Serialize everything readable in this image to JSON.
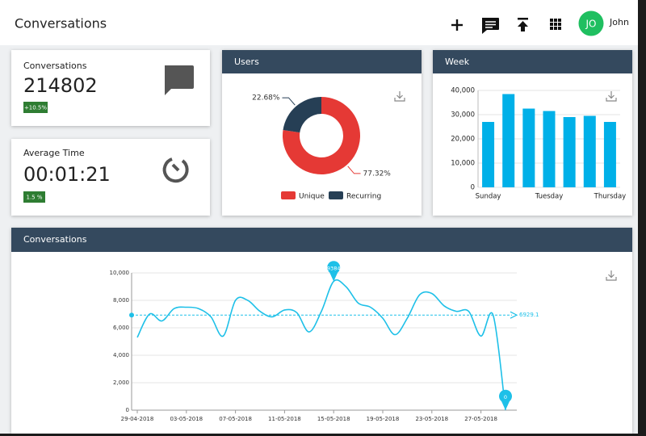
{
  "header": {
    "title": "Conversations",
    "avatar": "JO",
    "user": "John"
  },
  "cards": [
    {
      "label": "Conversations",
      "value": "214802",
      "badge": "+10.5%"
    },
    {
      "label": "Average Time",
      "value": "00:01:21",
      "badge": "1.5 %"
    }
  ],
  "chart_data": [
    {
      "type": "donut",
      "title": "Users",
      "categories": [
        "Unique",
        "Recurring"
      ],
      "values": [
        77.32,
        22.68
      ],
      "value_labels": [
        "77.32%",
        "22.68%"
      ],
      "colors": [
        "#e53935",
        "#263f55"
      ],
      "legend": "bottom"
    },
    {
      "type": "bar",
      "title": "Week",
      "categories": [
        "Sunday",
        null,
        null,
        "Tuesday",
        null,
        null,
        "Thursday"
      ],
      "values": [
        27000,
        38500,
        32500,
        31500,
        29000,
        29500,
        27000
      ],
      "color": "#00b0e8",
      "ylim": [
        0,
        40000
      ],
      "yticks": [
        0,
        {
          "value": 10000,
          "label": "10,000"
        },
        {
          "value": 20000,
          "label": "20,000"
        },
        {
          "value": 30000,
          "label": "30,000"
        },
        {
          "value": 40000,
          "label": "40,000"
        }
      ],
      "grid": true
    },
    {
      "type": "line",
      "title": "Conversations",
      "categories": [
        "29-04-2018",
        null,
        null,
        null,
        "03-05-2018",
        null,
        null,
        null,
        "07-05-2018",
        null,
        null,
        null,
        "11-05-2018",
        null,
        null,
        null,
        "15-05-2018",
        null,
        null,
        null,
        "19-05-2018",
        null,
        null,
        null,
        "23-05-2018",
        null,
        null,
        null,
        "27-05-2018",
        null,
        null
      ],
      "series": [
        {
          "name": "Conversations",
          "color": "#1ec0e8",
          "values": [
            5300,
            7000,
            6500,
            7400,
            7500,
            7400,
            6800,
            5400,
            8000,
            8000,
            7200,
            6800,
            7300,
            7100,
            5700,
            7200,
            9384,
            9000,
            7800,
            7500,
            6700,
            5500,
            6700,
            8400,
            8500,
            7600,
            7200,
            7200,
            5400,
            6900,
            0
          ]
        }
      ],
      "average": 6929.1,
      "ylim": [
        0,
        10000
      ],
      "yticks": [
        0,
        {
          "value": 2000,
          "label": "2,000"
        },
        {
          "value": 4000,
          "label": "4,000"
        },
        {
          "value": 6000,
          "label": "6,000"
        },
        {
          "value": 8000,
          "label": "8,000"
        },
        {
          "value": 10000,
          "label": "10,000"
        }
      ],
      "grid": true
    }
  ]
}
